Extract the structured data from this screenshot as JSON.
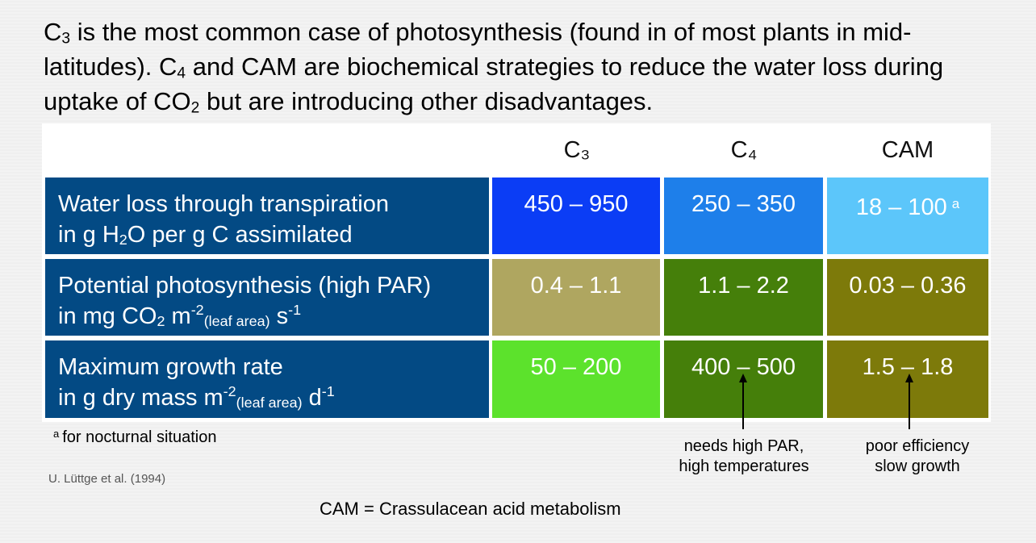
{
  "intro": {
    "p1": "C",
    "p1_sub": "3",
    "p2": " is the most common case of photosynthesis (found in of most plants in mid-latitudes). C",
    "p2_sub": "4",
    "p3": " and CAM are biochemical strategies to reduce the water loss during uptake of CO",
    "p3_sub": "2",
    "p4": " but are introducing other disadvantages."
  },
  "columns": {
    "c3": "C₃",
    "c4": "C₄",
    "cam": "CAM"
  },
  "rows": {
    "water": {
      "line1": "Water loss through transpiration",
      "l2a": "in g H",
      "l2sub": "2",
      "l2b": "O per g C assimilated",
      "c3": "450 – 950",
      "c4": "250 – 350",
      "cam": "18 – 100",
      "cam_note": "a"
    },
    "photo": {
      "line1": "Potential photosynthesis (high PAR)",
      "l2a": "in mg CO",
      "l2sub": "2",
      "l2b": " m",
      "l2sup1": "-2",
      "l2sub2": "(leaf area)",
      "l2c": " s",
      "l2sup2": "-1",
      "c3": "0.4 – 1.1",
      "c4": "1.1 – 2.2",
      "cam": "0.03 – 0.36"
    },
    "growth": {
      "line1": "Maximum growth rate",
      "l2a": "in g dry mass m",
      "l2sup1": "-2",
      "l2sub2": "(leaf area)",
      "l2c": " d",
      "l2sup2": "-1",
      "c3": "50 – 200",
      "c4": "400 – 500",
      "cam": "1.5 – 1.8"
    }
  },
  "footnote": {
    "marker": "a",
    "text": "for nocturnal situation"
  },
  "source": "U. Lüttge et al. (1994)",
  "annotations": {
    "c4_line1": "needs high PAR,",
    "c4_line2": "high temperatures",
    "cam_line1": "poor efficiency",
    "cam_line2": "slow growth"
  },
  "abbreviation": "CAM = Crassulacean acid metabolism",
  "colors": {
    "row_header": "#034a84",
    "water_c3": "#0b3df5",
    "water_c4": "#1e7fea",
    "water_cam": "#5cc6fa",
    "photo_c3": "#afa660",
    "photo_c4": "#457f0a",
    "photo_cam": "#7d7a0a",
    "growth_c3": "#5ce22c",
    "growth_c4": "#457f0a",
    "growth_cam": "#7d7a0a"
  }
}
